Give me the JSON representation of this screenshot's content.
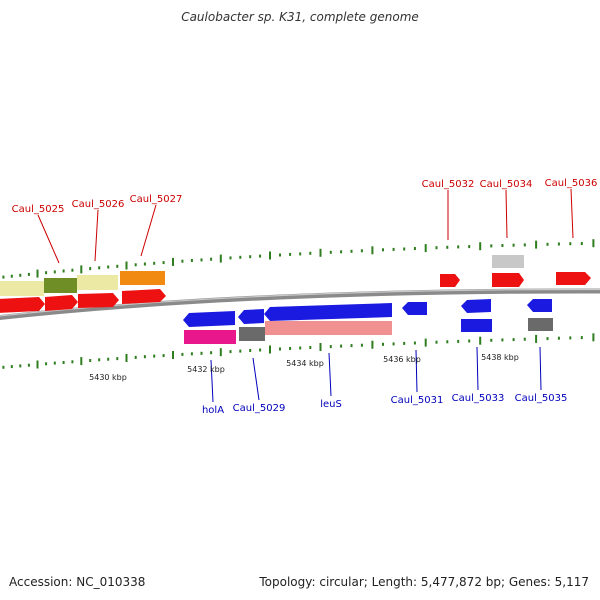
{
  "title": "Caulobacter sp. K31, complete genome",
  "footer": {
    "accession": "Accession: NC_010338",
    "info": "Topology: circular; Length: 5,477,872 bp; Genes: 5,117"
  },
  "colors": {
    "backbone": "#8a8a8a",
    "tick": "#2e7d1f",
    "top_label": "#cc0000",
    "bottom_label": "#0000bb",
    "pale_yellow": "#ece9a4",
    "olive": "#6f8f26",
    "orange": "#f08a10",
    "red": "#ee1111",
    "light_gray": "#c8c8c8",
    "blue": "#1a1ae0",
    "magenta": "#e8188c",
    "dark_gray": "#6a6a6a",
    "pink": "#f09090"
  },
  "scale": {
    "labels": [
      "5430 kbp",
      "5432 kbp",
      "5434 kbp",
      "5436 kbp",
      "5438 kbp"
    ]
  },
  "genes_top": [
    {
      "name": "Caul_5025"
    },
    {
      "name": "Caul_5026"
    },
    {
      "name": "Caul_5027"
    },
    {
      "name": "Caul_5032"
    },
    {
      "name": "Caul_5034"
    },
    {
      "name": "Caul_5036"
    }
  ],
  "genes_bottom": [
    {
      "name": "holA"
    },
    {
      "name": "Caul_5029"
    },
    {
      "name": "leuS"
    },
    {
      "name": "Caul_5031"
    },
    {
      "name": "Caul_5033"
    },
    {
      "name": "Caul_5035"
    }
  ]
}
